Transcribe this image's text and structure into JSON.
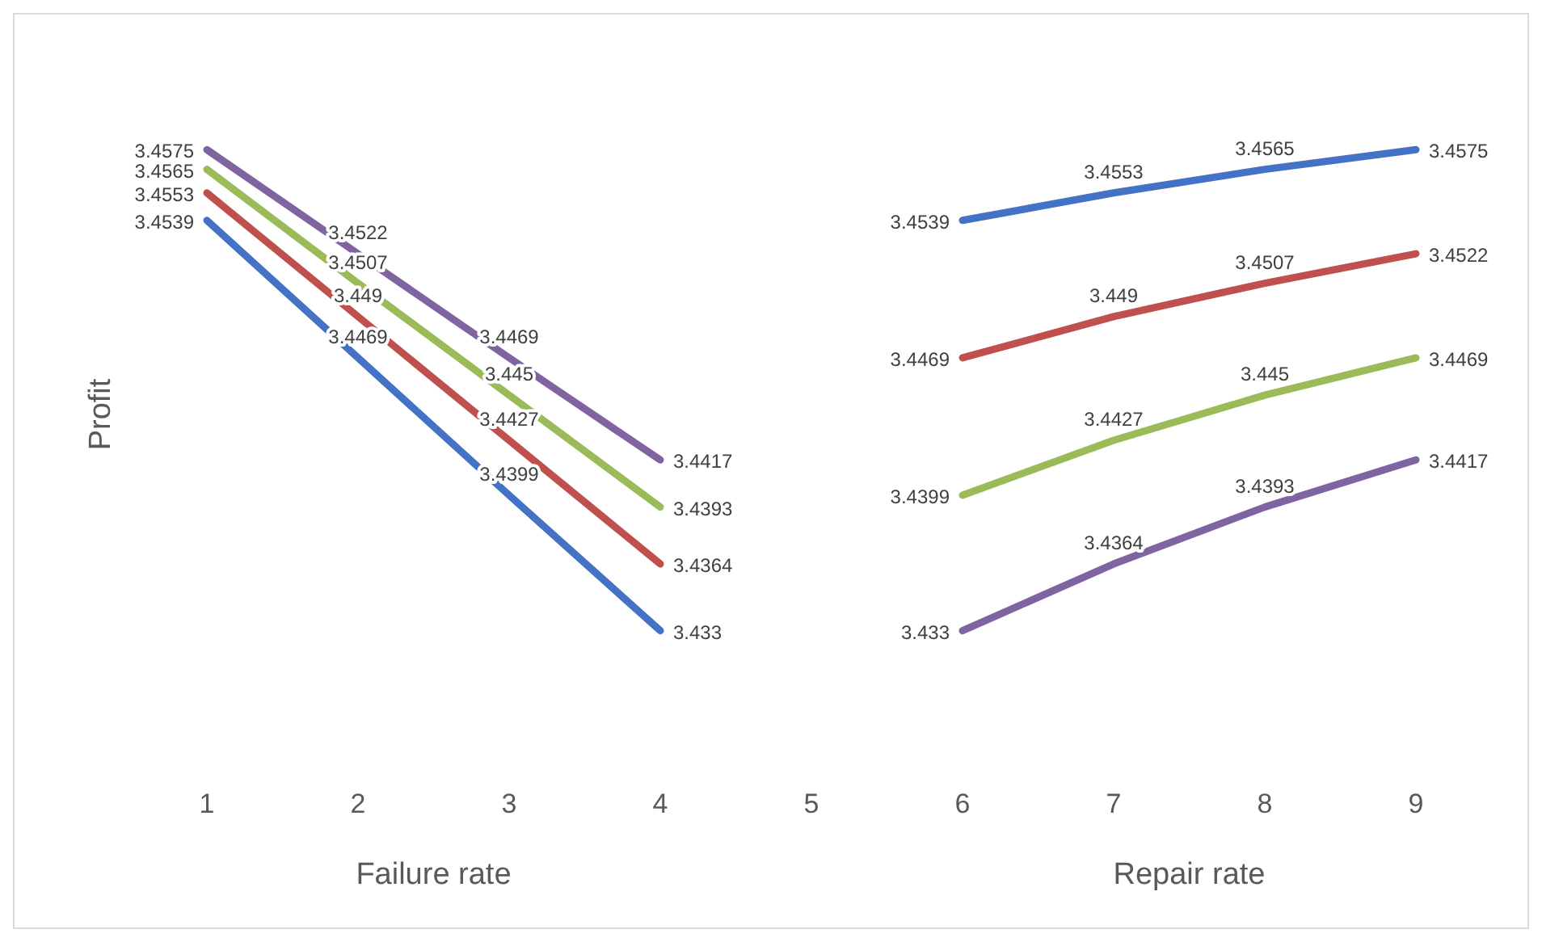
{
  "chart_data": {
    "type": "line",
    "ylabel": "Profit",
    "xlabel": "Failure rate",
    "annotations": [
      "Repair rate"
    ],
    "categories": [
      "1",
      "2",
      "3",
      "4",
      "5",
      "6",
      "7",
      "8",
      "9"
    ],
    "data_labels": true,
    "marker": "none",
    "line_style": "solid",
    "series": [
      {
        "color": "#4472c4",
        "values": [
          3.4539,
          3.4469,
          3.4399,
          3.433,
          null,
          null,
          null,
          null,
          null
        ]
      },
      {
        "color": "#c0504d",
        "values": [
          3.4553,
          3.449,
          3.4427,
          3.4364,
          null,
          null,
          null,
          null,
          null
        ]
      },
      {
        "color": "#9bbb59",
        "values": [
          3.4565,
          3.4507,
          3.445,
          3.4393,
          null,
          null,
          null,
          null,
          null
        ]
      },
      {
        "color": "#8064a2",
        "values": [
          3.4575,
          3.4522,
          3.4469,
          3.4417,
          null,
          null,
          null,
          null,
          null
        ]
      },
      {
        "color": "#4472c4",
        "values": [
          null,
          null,
          null,
          null,
          null,
          3.4539,
          3.4553,
          3.4565,
          3.4575
        ]
      },
      {
        "color": "#c0504d",
        "values": [
          null,
          null,
          null,
          null,
          null,
          3.4469,
          3.449,
          3.4507,
          3.4522
        ]
      },
      {
        "color": "#9bbb59",
        "values": [
          null,
          null,
          null,
          null,
          null,
          3.4399,
          3.4427,
          3.445,
          3.4469
        ]
      },
      {
        "color": "#8064a2",
        "values": [
          null,
          null,
          null,
          null,
          null,
          3.433,
          3.4364,
          3.4393,
          3.4417
        ]
      }
    ]
  }
}
